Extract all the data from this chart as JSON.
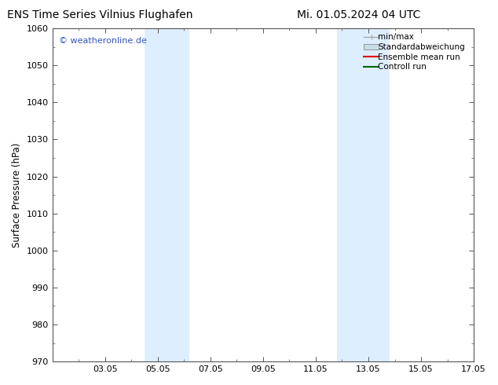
{
  "title_left": "ENS Time Series Vilnius Flughafen",
  "title_right": "Mi. 01.05.2024 04 UTC",
  "ylabel": "Surface Pressure (hPa)",
  "ylim": [
    970,
    1060
  ],
  "yticks": [
    970,
    980,
    990,
    1000,
    1010,
    1020,
    1030,
    1040,
    1050,
    1060
  ],
  "xlim": [
    0,
    16
  ],
  "xtick_labels": [
    "03.05",
    "05.05",
    "07.05",
    "09.05",
    "11.05",
    "13.05",
    "15.05",
    "17.05"
  ],
  "xtick_positions": [
    2,
    4,
    6,
    8,
    10,
    12,
    14,
    16
  ],
  "shaded_regions": [
    {
      "xmin": 3.5,
      "xmax": 5.2,
      "color": "#ddeeff"
    },
    {
      "xmin": 10.8,
      "xmax": 12.8,
      "color": "#ddeeff"
    }
  ],
  "watermark_text": "© weatheronline.de",
  "watermark_color": "#3355bb",
  "legend_entries": [
    {
      "label": "min/max"
    },
    {
      "label": "Standardabweichung"
    },
    {
      "label": "Ensemble mean run"
    },
    {
      "label": "Controll run"
    }
  ],
  "legend_colors": [
    "#aaaaaa",
    "#c8dce8",
    "#dd0000",
    "#006600"
  ],
  "bg_color": "#ffffff",
  "plot_area_color": "#ffffff",
  "title_fontsize": 10,
  "label_fontsize": 8.5,
  "tick_fontsize": 8,
  "legend_fontsize": 7.5,
  "watermark_fontsize": 8
}
